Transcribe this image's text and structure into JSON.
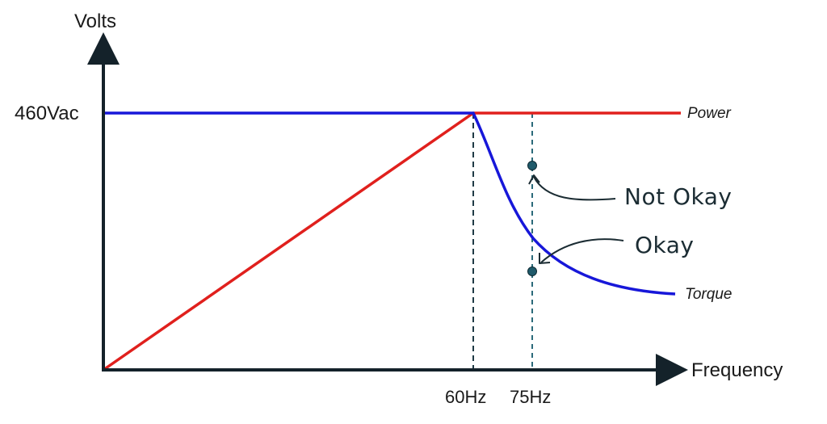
{
  "axes": {
    "y_label": "Volts",
    "x_label": "Frequency"
  },
  "ticks": {
    "y_tick": "460Vac",
    "x_ticks": [
      "60Hz",
      "75Hz"
    ]
  },
  "curves": {
    "power_label": "Power",
    "torque_label": "Torque"
  },
  "annotations": {
    "not_okay": "Not Okay",
    "okay": "Okay"
  },
  "colors": {
    "axis": "#14222a",
    "power": "#e0201d",
    "torque": "#1717d9",
    "marker": "#1f5a6a",
    "annotation": "#1b2c33"
  }
}
